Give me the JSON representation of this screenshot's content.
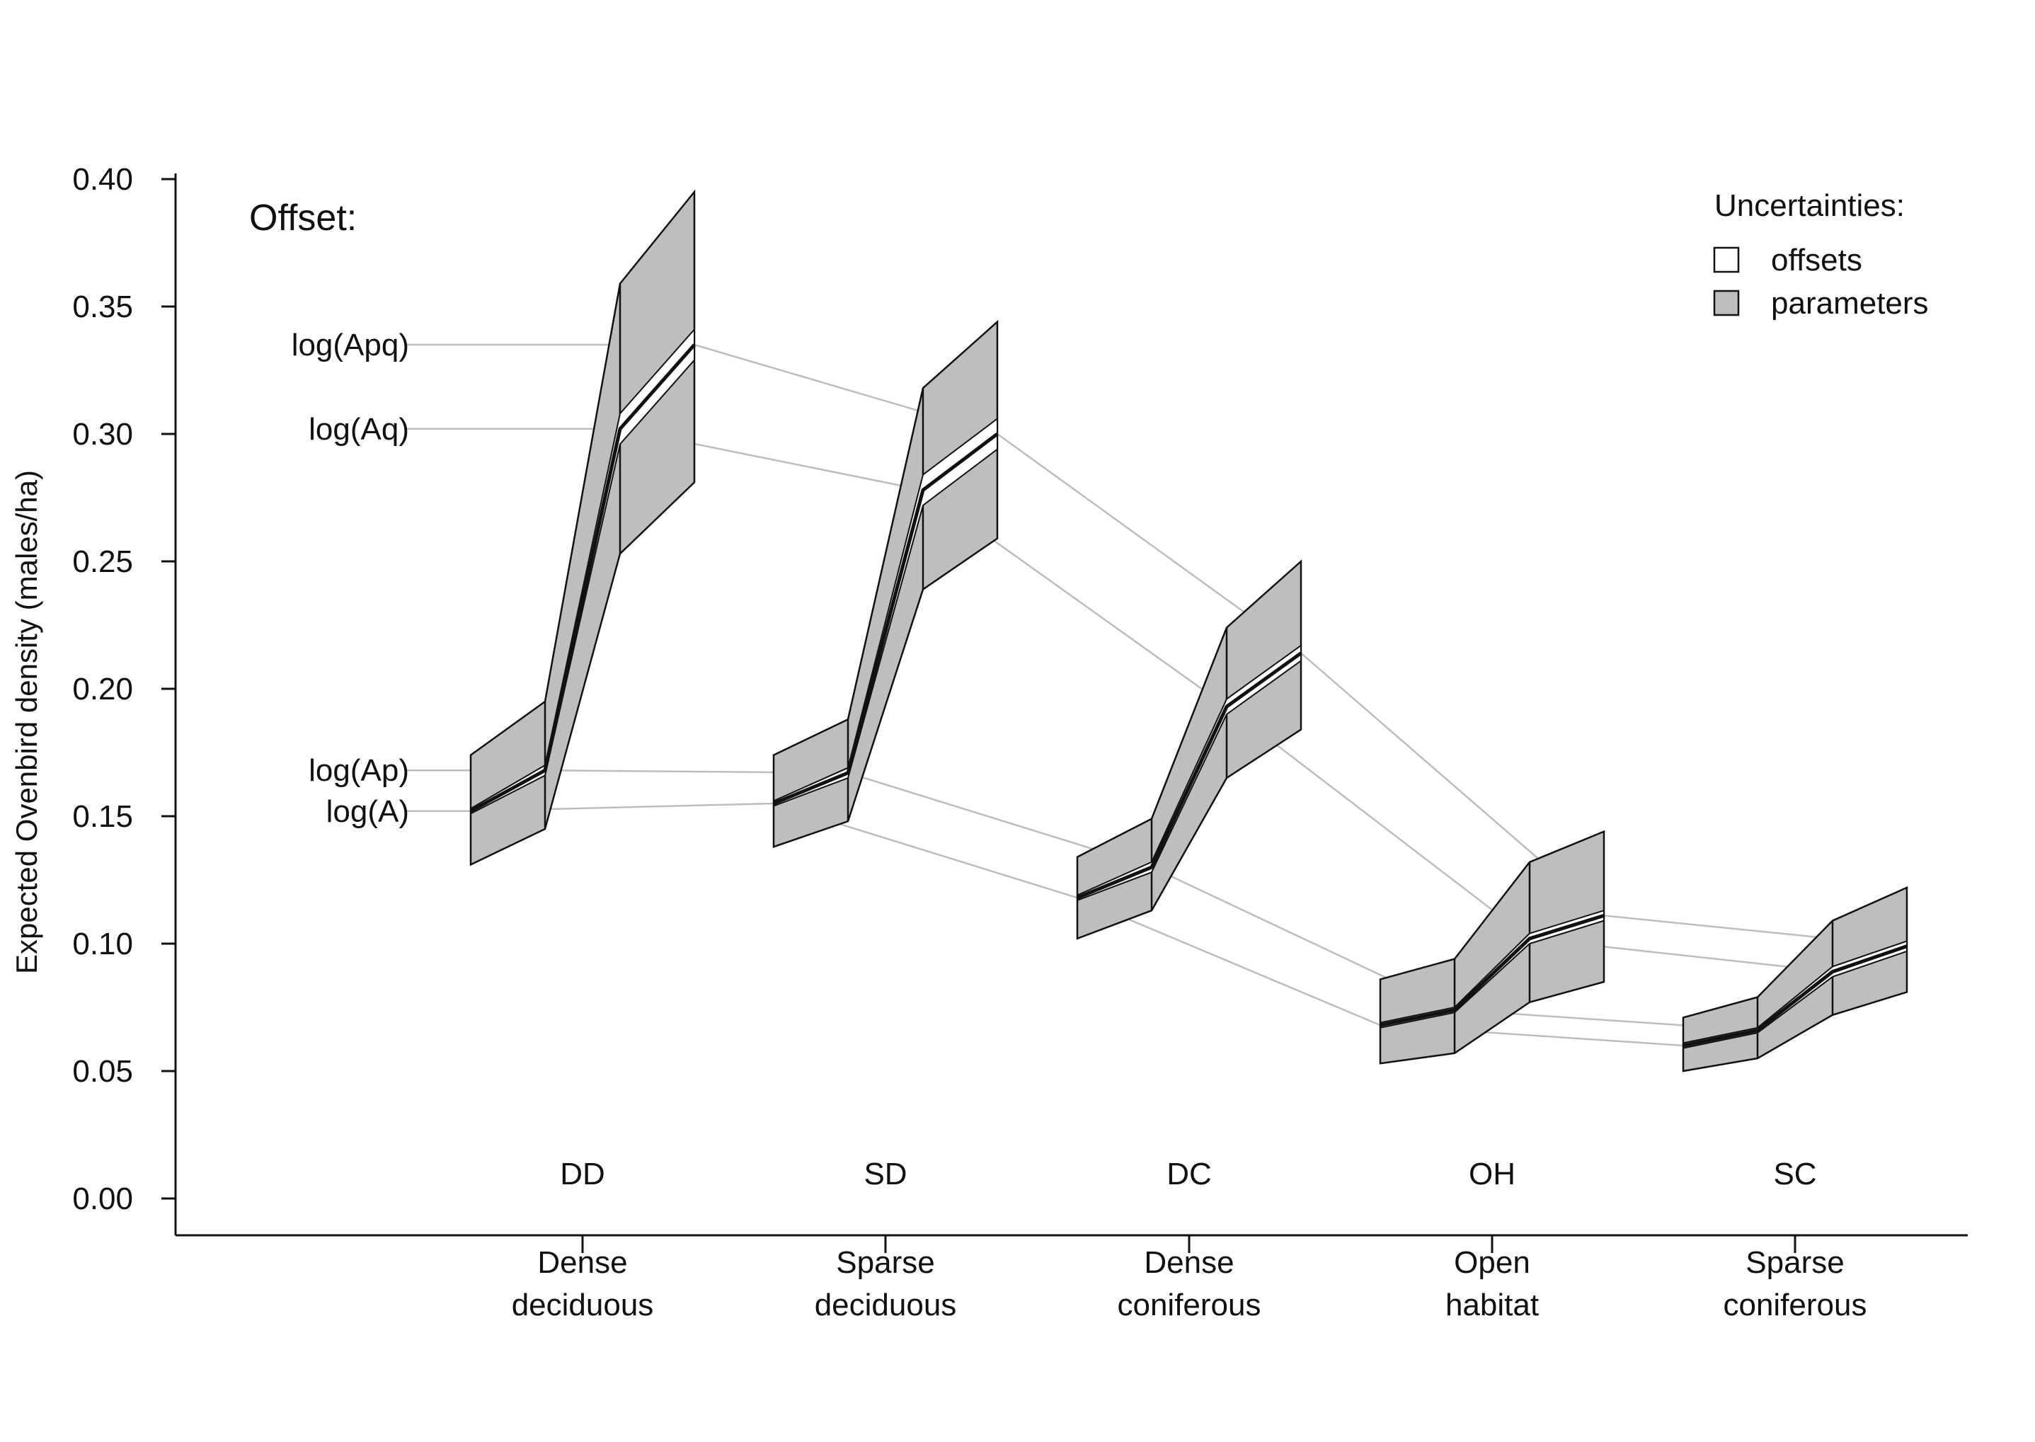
{
  "chart_data": {
    "type": "line",
    "title": "",
    "ylabel": "Expected Ovenbird density (males/ha)",
    "ylim": [
      0,
      0.4
    ],
    "yticks": [
      "0.00",
      "0.05",
      "0.10",
      "0.15",
      "0.20",
      "0.25",
      "0.30",
      "0.35",
      "0.40"
    ],
    "grid": false,
    "categories": [
      {
        "code": "DD",
        "name_line1": "Dense",
        "name_line2": "deciduous"
      },
      {
        "code": "SD",
        "name_line1": "Sparse",
        "name_line2": "deciduous"
      },
      {
        "code": "DC",
        "name_line1": "Dense",
        "name_line2": "coniferous"
      },
      {
        "code": "OH",
        "name_line1": "Open",
        "name_line2": "habitat"
      },
      {
        "code": "SC",
        "name_line1": "Sparse",
        "name_line2": "coniferous"
      }
    ],
    "offset_panel": {
      "title": "Offset:",
      "labels": [
        "log(A)",
        "log(Ap)",
        "log(Aq)",
        "log(Apq)"
      ]
    },
    "legend": {
      "title": "Uncertainties:",
      "placement": "top-right",
      "entries": [
        {
          "label": "offsets",
          "color": "#ffffff"
        },
        {
          "label": "parameters",
          "color": "#bebebe"
        }
      ]
    },
    "series": [
      {
        "category": "DD",
        "mean": [
          0.152,
          0.168,
          0.302,
          0.335
        ],
        "param_low": [
          0.131,
          0.145,
          0.253,
          0.281
        ],
        "param_high": [
          0.174,
          0.195,
          0.359,
          0.395
        ],
        "offset_low": [
          0.151,
          0.166,
          0.296,
          0.329
        ],
        "offset_high": [
          0.153,
          0.17,
          0.308,
          0.341
        ]
      },
      {
        "category": "SD",
        "mean": [
          0.155,
          0.167,
          0.278,
          0.3
        ],
        "param_low": [
          0.138,
          0.148,
          0.239,
          0.259
        ],
        "param_high": [
          0.174,
          0.188,
          0.318,
          0.344
        ],
        "offset_low": [
          0.154,
          0.165,
          0.272,
          0.294
        ],
        "offset_high": [
          0.156,
          0.169,
          0.284,
          0.306
        ]
      },
      {
        "category": "DC",
        "mean": [
          0.118,
          0.13,
          0.193,
          0.214
        ],
        "param_low": [
          0.102,
          0.113,
          0.165,
          0.184
        ],
        "param_high": [
          0.134,
          0.149,
          0.224,
          0.25
        ],
        "offset_low": [
          0.117,
          0.128,
          0.19,
          0.211
        ],
        "offset_high": [
          0.119,
          0.132,
          0.196,
          0.217
        ]
      },
      {
        "category": "OH",
        "mean": [
          0.068,
          0.074,
          0.102,
          0.111
        ],
        "param_low": [
          0.053,
          0.057,
          0.077,
          0.085
        ],
        "param_high": [
          0.086,
          0.094,
          0.132,
          0.144
        ],
        "offset_low": [
          0.067,
          0.073,
          0.1,
          0.109
        ],
        "offset_high": [
          0.069,
          0.075,
          0.104,
          0.113
        ]
      },
      {
        "category": "SC",
        "mean": [
          0.06,
          0.066,
          0.089,
          0.099
        ],
        "param_low": [
          0.05,
          0.055,
          0.072,
          0.081
        ],
        "param_high": [
          0.071,
          0.079,
          0.109,
          0.122
        ],
        "offset_low": [
          0.059,
          0.065,
          0.087,
          0.097
        ],
        "offset_high": [
          0.061,
          0.067,
          0.091,
          0.101
        ]
      }
    ]
  }
}
